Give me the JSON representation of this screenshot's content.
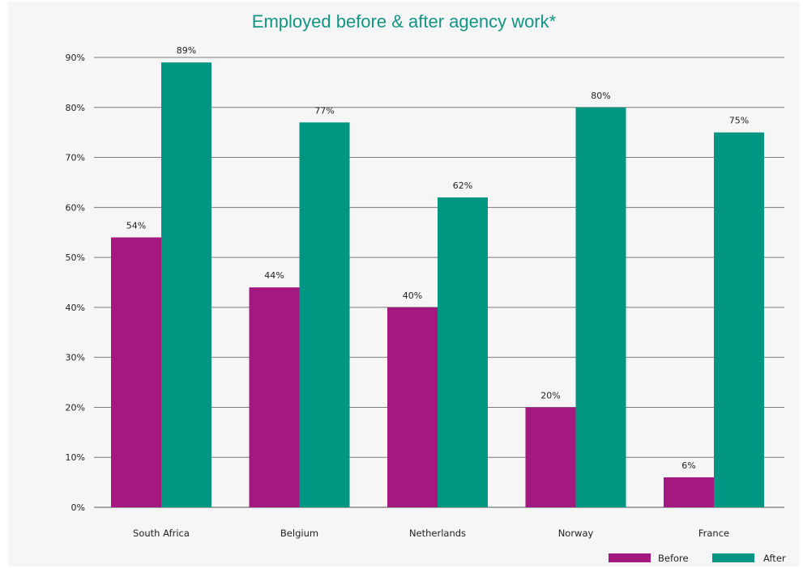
{
  "chart_data": {
    "type": "bar",
    "title": "Employed before & after agency work*",
    "categories": [
      "South Africa",
      "Belgium",
      "Netherlands",
      "Norway",
      "France"
    ],
    "series": [
      {
        "name": "Before",
        "values": [
          54,
          44,
          40,
          20,
          6
        ],
        "labels": [
          "54%",
          "44%",
          "40%",
          "20%",
          "6%"
        ],
        "color": "#a3197f"
      },
      {
        "name": "After",
        "values": [
          89,
          77,
          62,
          80,
          75
        ],
        "labels": [
          "89%",
          "77%",
          "62%",
          "80%",
          "75%"
        ],
        "color": "#009682"
      }
    ],
    "y_ticks": [
      "0%",
      "10%",
      "20%",
      "30%",
      "40%",
      "50%",
      "60%",
      "70%",
      "80%",
      "90%"
    ],
    "ylim": [
      0,
      90
    ],
    "grid": true,
    "legend_position": "bottom-right",
    "title_color": "#129482"
  }
}
